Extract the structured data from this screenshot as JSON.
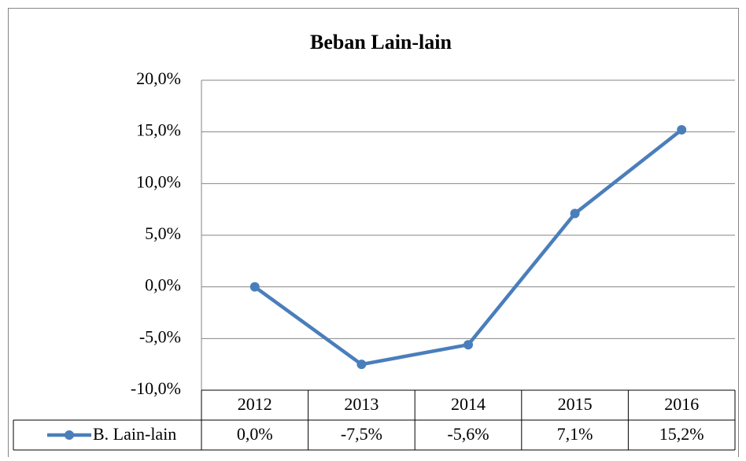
{
  "chart_data": {
    "type": "line",
    "title": "Beban Lain-lain",
    "categories": [
      "2012",
      "2013",
      "2014",
      "2015",
      "2016"
    ],
    "series": [
      {
        "name": "B. Lain-lain",
        "color": "#4a7ebb",
        "values": [
          0,
          -7.5,
          -5.6,
          7.1,
          15.2
        ],
        "value_labels": [
          "0,0%",
          "-7,5%",
          "-5,6%",
          "7,1%",
          "15,2%"
        ]
      }
    ],
    "ylim": [
      -10,
      20
    ],
    "yticks": [
      {
        "value": -10,
        "label": "-10,0%"
      },
      {
        "value": -5,
        "label": "-5,0%"
      },
      {
        "value": 0,
        "label": "0,0%"
      },
      {
        "value": 5,
        "label": "5,0%"
      },
      {
        "value": 10,
        "label": "10,0%"
      },
      {
        "value": 15,
        "label": "15,0%"
      },
      {
        "value": 20,
        "label": "20,0%"
      }
    ],
    "grid": true,
    "data_table": true
  }
}
